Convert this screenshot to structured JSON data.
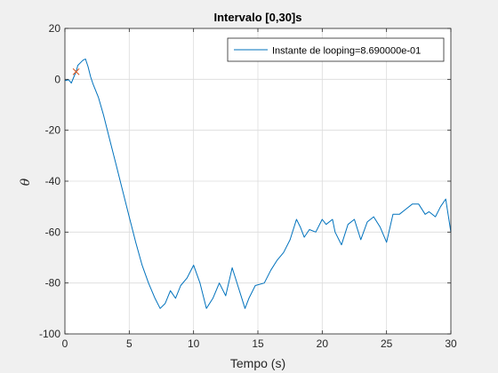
{
  "figure": {
    "background": "#f0f0f0",
    "axes_background": "#ffffff"
  },
  "chart_data": {
    "type": "line",
    "title": "Intervalo [0,30]s",
    "xlabel": "Tempo (s)",
    "ylabel": "θ",
    "xlim": [
      0,
      30
    ],
    "ylim": [
      -100,
      20
    ],
    "xticks": [
      0,
      5,
      10,
      15,
      20,
      25,
      30
    ],
    "yticks": [
      -100,
      -80,
      -60,
      -40,
      -20,
      0,
      20
    ],
    "grid": true,
    "legend": {
      "location": "top-right",
      "entries": [
        "Instante de looping=8.690000e-01"
      ]
    },
    "series": [
      {
        "name": "Instante de looping=8.690000e-01",
        "color": "#0072bd",
        "x": [
          0,
          0.3,
          0.5,
          0.7,
          0.869,
          1.0,
          1.2,
          1.4,
          1.6,
          1.8,
          2.0,
          2.2,
          2.6,
          3.0,
          3.5,
          4.0,
          4.5,
          5.0,
          5.5,
          6.0,
          6.5,
          7.0,
          7.4,
          7.8,
          8.2,
          8.6,
          9.0,
          9.5,
          10.0,
          10.5,
          11.0,
          11.5,
          12.0,
          12.5,
          13.0,
          13.5,
          14.0,
          14.3,
          14.8,
          15.5,
          16.0,
          16.5,
          17.0,
          17.5,
          18.0,
          18.3,
          18.6,
          19.0,
          19.5,
          20.0,
          20.3,
          20.8,
          21.0,
          21.5,
          22.0,
          22.5,
          23.0,
          23.5,
          24.0,
          24.5,
          25.0,
          25.5,
          26.0,
          26.5,
          27.0,
          27.5,
          28.0,
          28.3,
          28.8,
          29.2,
          29.6,
          30.0
        ],
        "y": [
          -0.5,
          -0.2,
          -1.5,
          1.0,
          3.0,
          5.5,
          6.5,
          7.5,
          8.0,
          5.0,
          1.0,
          -2.0,
          -7.0,
          -14.0,
          -24.0,
          -34.0,
          -44.0,
          -54.0,
          -64.0,
          -73.0,
          -80.0,
          -86.0,
          -90.0,
          -88.0,
          -83.0,
          -86.0,
          -81.0,
          -78.0,
          -73.0,
          -80.0,
          -90.0,
          -86.0,
          -80.0,
          -85.0,
          -74.0,
          -82.0,
          -90.0,
          -86.0,
          -81.0,
          -80.0,
          -75.0,
          -71.0,
          -68.0,
          -63.0,
          -55.0,
          -58.0,
          -62.0,
          -59.0,
          -60.0,
          -55.0,
          -57.0,
          -55.0,
          -60.0,
          -65.0,
          -57.0,
          -55.0,
          -63.0,
          -56.0,
          -54.0,
          -58.0,
          -64.0,
          -53.0,
          -53.0,
          -51.0,
          -49.0,
          -49.0,
          -53.0,
          -52.0,
          -54.0,
          -50.0,
          -47.0,
          -60.0
        ]
      }
    ],
    "markers": [
      {
        "x": 0.869,
        "y": 3.0,
        "symbol": "x",
        "color": "#d95319"
      }
    ]
  }
}
